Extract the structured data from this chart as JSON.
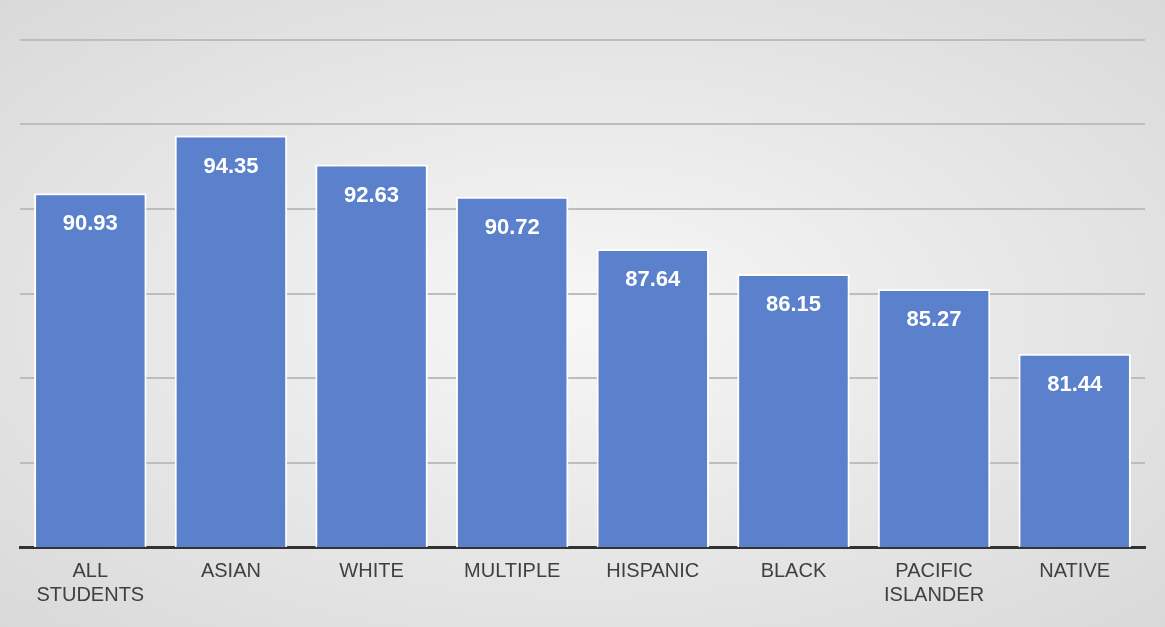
{
  "chart_data": {
    "type": "bar",
    "categories": [
      "ALL STUDENTS",
      "ASIAN",
      "WHITE",
      "MULTIPLE",
      "HISPANIC",
      "BLACK",
      "PACIFIC ISLANDER",
      "NATIVE"
    ],
    "values": [
      90.93,
      94.35,
      92.63,
      90.72,
      87.64,
      86.15,
      85.27,
      81.44
    ],
    "color": "#5b80cc",
    "ylim": [
      70,
      100
    ],
    "grid": "y",
    "tick_labels": "x",
    "data_labels": true,
    "legend": false
  }
}
